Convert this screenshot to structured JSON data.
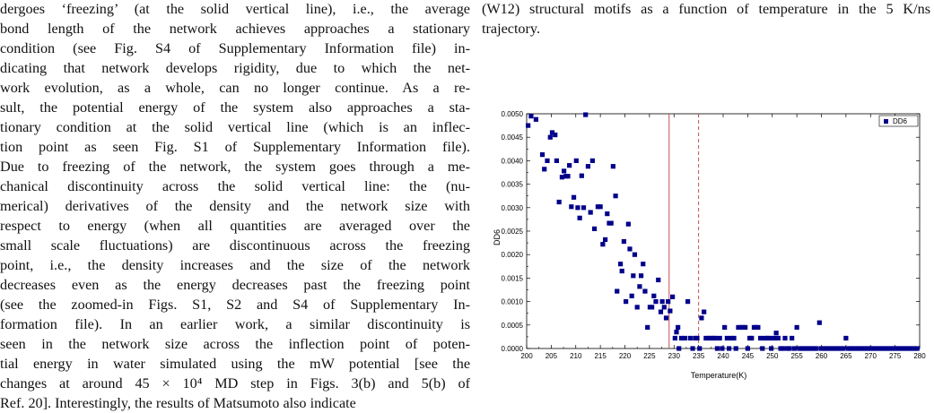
{
  "left_column": {
    "lines": [
      "dergoes ‘freezing’ (at the solid vertical line), i.e., the average",
      "bond length of the network achieves approaches a stationary",
      "condition (see Fig. S4 of Supplementary Information file) in-",
      "dicating that network develops rigidity, due to which the net-",
      "work evolution, as a whole, can no longer continue. As a re-",
      "sult, the potential energy of the system also approaches a sta-",
      "tionary condition at the solid vertical line (which is an inflec-",
      "tion point as seen Fig. S1 of Supplementary Information file).",
      "Due to freezing of the network, the system goes through a me-",
      "chanical discontinuity across the solid vertical line: the (nu-",
      "merical) derivatives of the density and the network size with",
      "respect to energy (when all quantities are averaged over the",
      "small scale fluctuations) are discontinuous across the freezing",
      "point, i.e., the density increases and the size of the network",
      "decreases even as the energy decreases past the freezing point",
      "(see the zoomed-in Figs. S1, S2 and S4 of Supplementary In-",
      "formation file).  In an earlier work, a similar discontinuity is",
      "seen in the network size across the inflection point of poten-",
      "tial energy in water simulated using the mW potential [see the",
      "changes at around 45 × 10⁴ MD step in Figs. 3(b) and 5(b) of",
      "Ref. 20]. Interestingly, the results of Matsumoto also indicate"
    ]
  },
  "right_column": {
    "lines": [
      "(W12) structural motifs as a function of temperature in the 5 K/ns",
      "trajectory."
    ]
  },
  "chart_data": {
    "type": "scatter",
    "xlabel": "Temperature(K)",
    "ylabel": "DD6",
    "xlim": [
      200,
      280
    ],
    "ylim": [
      0,
      0.005
    ],
    "x_ticks": [
      "200",
      "205",
      "210",
      "215",
      "220",
      "225",
      "230",
      "235",
      "240",
      "245",
      "250",
      "255",
      "260",
      "265",
      "270",
      "275",
      "280"
    ],
    "y_ticks": [
      "0.0000",
      "0.0005",
      "0.0010",
      "0.0015",
      "0.0020",
      "0.0025",
      "0.0030",
      "0.0035",
      "0.0040",
      "0.0045",
      "0.0050"
    ],
    "legend": {
      "position": "top-right",
      "entries": [
        "DD6"
      ]
    },
    "marker_color": "#00008b",
    "vertical_lines": [
      {
        "x": 229,
        "style": "solid",
        "color": "#c0504d"
      },
      {
        "x": 235,
        "style": "dashed",
        "color": "#c0504d"
      }
    ],
    "series": [
      {
        "name": "DD6",
        "points": [
          [
            200.3,
            0.00475
          ],
          [
            200.9,
            0.00495
          ],
          [
            201.9,
            0.00488
          ],
          [
            203.2,
            0.00413
          ],
          [
            203.6,
            0.00382
          ],
          [
            204.2,
            0.004
          ],
          [
            204.8,
            0.0045
          ],
          [
            205.2,
            0.0046
          ],
          [
            205.8,
            0.00455
          ],
          [
            206.1,
            0.004
          ],
          [
            206.6,
            0.00312
          ],
          [
            207.2,
            0.00365
          ],
          [
            207.6,
            0.00378
          ],
          [
            208.0,
            0.00367
          ],
          [
            208.4,
            0.00367
          ],
          [
            208.7,
            0.0039
          ],
          [
            209.1,
            0.00302
          ],
          [
            209.6,
            0.00322
          ],
          [
            210.1,
            0.004
          ],
          [
            210.4,
            0.003
          ],
          [
            210.8,
            0.00278
          ],
          [
            211.2,
            0.00368
          ],
          [
            211.6,
            0.003
          ],
          [
            212.0,
            0.00498
          ],
          [
            212.5,
            0.00388
          ],
          [
            213.0,
            0.0029
          ],
          [
            213.4,
            0.004
          ],
          [
            213.8,
            0.00255
          ],
          [
            214.5,
            0.00302
          ],
          [
            215.0,
            0.00302
          ],
          [
            215.5,
            0.00222
          ],
          [
            216.0,
            0.00232
          ],
          [
            216.4,
            0.00287
          ],
          [
            216.8,
            0.00267
          ],
          [
            217.2,
            0.00267
          ],
          [
            217.6,
            0.00388
          ],
          [
            218.1,
            0.00325
          ],
          [
            218.4,
            0.00122
          ],
          [
            219.1,
            0.0018
          ],
          [
            219.4,
            0.00165
          ],
          [
            219.8,
            0.00228
          ],
          [
            220.2,
            0.001
          ],
          [
            220.7,
            0.00265
          ],
          [
            221.0,
            0.00212
          ],
          [
            221.4,
            0.00112
          ],
          [
            221.7,
            0.00155
          ],
          [
            222.0,
            0.002
          ],
          [
            222.5,
            0.00088
          ],
          [
            223.0,
            0.00132
          ],
          [
            223.3,
            0.00155
          ],
          [
            223.7,
            0.0018
          ],
          [
            224.1,
            0.00122
          ],
          [
            224.6,
            0.00045
          ],
          [
            225.1,
            0.00088
          ],
          [
            225.5,
            0.00088
          ],
          [
            225.9,
            0.00112
          ],
          [
            226.3,
            0.001
          ],
          [
            226.8,
            0.00146
          ],
          [
            227.3,
            0.00078
          ],
          [
            227.6,
            0.001
          ],
          [
            228.0,
            0.00088
          ],
          [
            228.4,
            0.00065
          ],
          [
            228.8,
            0.001
          ],
          [
            229.2,
            0.0008
          ],
          [
            229.7,
            0.0011
          ],
          [
            230.2,
            0.00022
          ],
          [
            230.5,
            0.00035
          ],
          [
            230.8,
            0.00045
          ],
          [
            231.0,
            0.0
          ],
          [
            231.5,
            0.00022
          ],
          [
            232.2,
            0.00022
          ],
          [
            232.8,
            0.001
          ],
          [
            233.3,
            0.00022
          ],
          [
            233.8,
            0.0
          ],
          [
            234.3,
            0.00022
          ],
          [
            234.7,
            0.00022
          ],
          [
            235.2,
            0.0
          ],
          [
            235.6,
            0.00065
          ],
          [
            236.1,
            0.00078
          ],
          [
            236.5,
            0.00022
          ],
          [
            237.0,
            0.00022
          ],
          [
            237.5,
            0.00022
          ],
          [
            238.0,
            0.00022
          ],
          [
            238.4,
            0.00022
          ],
          [
            238.8,
            0.0
          ],
          [
            239.3,
            0.00022
          ],
          [
            239.8,
            0.0
          ],
          [
            240.3,
            0.00045
          ],
          [
            240.8,
            0.00022
          ],
          [
            241.2,
            0.0
          ],
          [
            241.7,
            0.00022
          ],
          [
            242.2,
            0.00022
          ],
          [
            242.6,
            0.0
          ],
          [
            243.1,
            0.00045
          ],
          [
            243.6,
            0.00045
          ],
          [
            244.1,
            0.00045
          ],
          [
            244.5,
            0.00045
          ],
          [
            245.0,
            0.0
          ],
          [
            245.4,
            0.00022
          ],
          [
            245.8,
            0.00022
          ],
          [
            246.3,
            0.00045
          ],
          [
            246.7,
            0.00045
          ],
          [
            247.1,
            0.00045
          ],
          [
            247.6,
            0.00022
          ],
          [
            248.0,
            0.0
          ],
          [
            248.5,
            0.00022
          ],
          [
            249.0,
            0.00022
          ],
          [
            249.4,
            0.00022
          ],
          [
            249.8,
            0.0
          ],
          [
            250.3,
            0.00022
          ],
          [
            250.8,
            0.00033
          ],
          [
            251.2,
            0.00022
          ],
          [
            251.7,
            0.0
          ],
          [
            252.2,
            0.0
          ],
          [
            252.6,
            0.00022
          ],
          [
            253.1,
            0.0
          ],
          [
            253.5,
            0.0
          ],
          [
            254.0,
            0.00022
          ],
          [
            254.5,
            0.0
          ],
          [
            255.0,
            0.00045
          ],
          [
            255.5,
            0.0
          ],
          [
            256.0,
            0.0
          ],
          [
            256.5,
            0.0
          ],
          [
            257.0,
            0.0
          ],
          [
            257.5,
            0.0
          ],
          [
            258.0,
            0.0
          ],
          [
            258.5,
            0.0
          ],
          [
            259.0,
            0.0
          ],
          [
            259.6,
            0.00055
          ],
          [
            260.0,
            0.0
          ],
          [
            260.5,
            0.0
          ],
          [
            261.0,
            0.0
          ],
          [
            261.5,
            0.0
          ],
          [
            262.0,
            0.0
          ],
          [
            262.5,
            0.0
          ],
          [
            263.0,
            0.0
          ],
          [
            263.5,
            0.0
          ],
          [
            264.0,
            0.0
          ],
          [
            264.5,
            0.0
          ],
          [
            265.0,
            0.00022
          ],
          [
            265.5,
            0.0
          ],
          [
            266.0,
            0.0
          ],
          [
            266.5,
            0.0
          ],
          [
            267.0,
            0.0
          ],
          [
            267.5,
            0.0
          ],
          [
            268.0,
            0.0
          ],
          [
            268.5,
            0.0
          ],
          [
            269.0,
            0.0
          ],
          [
            269.5,
            0.0
          ],
          [
            270.0,
            0.0
          ],
          [
            270.5,
            0.0
          ],
          [
            271.0,
            0.0
          ],
          [
            271.5,
            0.0
          ],
          [
            272.0,
            0.0
          ],
          [
            272.5,
            0.0
          ],
          [
            273.0,
            0.0
          ],
          [
            273.5,
            0.0
          ],
          [
            274.0,
            0.0
          ],
          [
            274.5,
            0.0
          ],
          [
            275.0,
            0.0
          ],
          [
            275.5,
            0.0
          ],
          [
            276.0,
            0.0
          ],
          [
            276.5,
            0.0
          ],
          [
            277.0,
            0.0
          ],
          [
            277.5,
            0.0
          ],
          [
            278.0,
            0.0
          ],
          [
            278.5,
            0.0
          ],
          [
            279.0,
            0.0
          ],
          [
            279.5,
            0.0
          ]
        ]
      }
    ]
  }
}
